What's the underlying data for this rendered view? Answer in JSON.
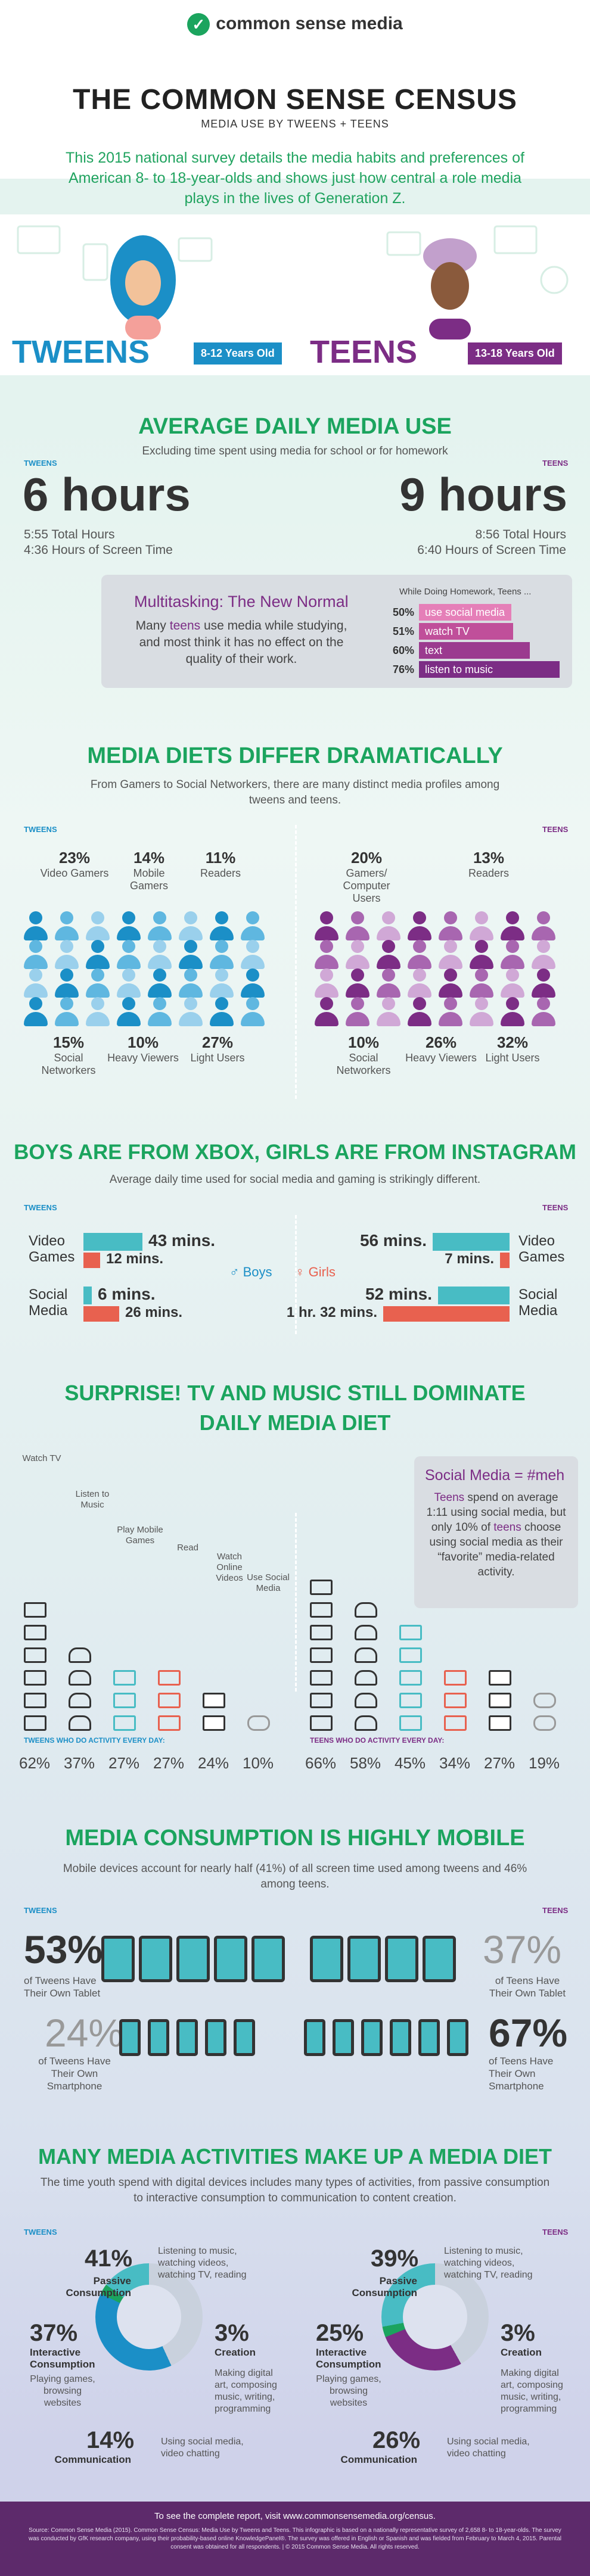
{
  "header": {
    "logo_text": "common sense media",
    "title": "THE COMMON SENSE CENSUS",
    "subtitle": "MEDIA USE BY TWEENS + TEENS",
    "intro": "This 2015 national survey details the media habits and preferences of American 8- to 18-year-olds and shows just how central a role media plays in the lives of Generation Z."
  },
  "hero": {
    "tweens_label": "TWEENS",
    "tweens_age": "8-12 Years Old",
    "teens_label": "TEENS",
    "teens_age": "13-18 Years Old"
  },
  "colors": {
    "green": "#1ba45e",
    "tweens_blue": "#1b8fc7",
    "teens_purple": "#7c2d85",
    "teal": "#48bcc4",
    "coral": "#e8614f",
    "pink": "#e57fb8"
  },
  "daily_use": {
    "title": "AVERAGE DAILY MEDIA USE",
    "subtitle": "Excluding time spent using media for school or for homework",
    "tweens_label": "TWEENS",
    "teens_label": "TEENS",
    "tweens_hours": "6 hours",
    "tweens_total": "5:55 Total Hours",
    "tweens_screen": "4:36 Hours of Screen Time",
    "teens_hours": "9 hours",
    "teens_total": "8:56 Total Hours",
    "teens_screen": "6:40 Hours of Screen Time"
  },
  "multitasking": {
    "title": "Multitasking: The New Normal",
    "text_before": "Many ",
    "text_highlight": "teens",
    "text_after": " use media while studying, and most think it has no effect on the quality of their work.",
    "header": "While Doing Homework, Teens ...",
    "rows": [
      {
        "pct": "50%",
        "label": "use social media",
        "value": 50,
        "color": "#e57fb8"
      },
      {
        "pct": "51%",
        "label": "watch TV",
        "value": 51,
        "color": "#c04f9a"
      },
      {
        "pct": "60%",
        "label": "text",
        "value": 60,
        "color": "#9b3a8f"
      },
      {
        "pct": "76%",
        "label": "listen to music",
        "value": 76,
        "color": "#7c2d85"
      }
    ]
  },
  "diets": {
    "title": "MEDIA DIETS DIFFER DRAMATICALLY",
    "subtitle": "From Gamers to Social Networkers, there are many distinct media profiles among tweens and teens.",
    "tweens_label": "TWEENS",
    "teens_label": "TEENS",
    "tweens_top": [
      {
        "pct": "23%",
        "desc": "Video Gamers"
      },
      {
        "pct": "14%",
        "desc": "Mobile Gamers"
      },
      {
        "pct": "11%",
        "desc": "Readers"
      }
    ],
    "tweens_bottom": [
      {
        "pct": "15%",
        "desc": "Social Networkers"
      },
      {
        "pct": "10%",
        "desc": "Heavy Viewers"
      },
      {
        "pct": "27%",
        "desc": "Light Users"
      }
    ],
    "teens_top": [
      {
        "pct": "20%",
        "desc": "Gamers/ Computer Users"
      },
      {
        "pct": "13%",
        "desc": "Readers"
      }
    ],
    "teens_bottom": [
      {
        "pct": "10%",
        "desc": "Social Networkers"
      },
      {
        "pct": "26%",
        "desc": "Heavy Viewers"
      },
      {
        "pct": "32%",
        "desc": "Light Users"
      }
    ]
  },
  "social_gaming": {
    "title": "BOYS ARE FROM XBOX, GIRLS ARE FROM INSTAGRAM",
    "subtitle": "Average daily time used for social media and gaming is strikingly different.",
    "tweens_label": "TWEENS",
    "teens_label": "TEENS",
    "boys_label": "Boys",
    "girls_label": "Girls",
    "video_games_label": "Video Games",
    "social_media_label": "Social Media",
    "tweens_video_boys": "43 mins.",
    "tweens_video_girls": "12 mins.",
    "tweens_social_boys": "6 mins.",
    "tweens_social_girls": "26 mins.",
    "teens_video_boys": "56 mins.",
    "teens_video_girls": "7 mins.",
    "teens_social_boys": "52 mins.",
    "teens_social_girls": "1 hr. 32 mins.",
    "minutes": {
      "tweens_video_boys": 43,
      "tweens_video_girls": 12,
      "tweens_social_boys": 6,
      "tweens_social_girls": 26,
      "teens_video_boys": 56,
      "teens_video_girls": 7,
      "teens_social_boys": 52,
      "teens_social_girls": 92
    }
  },
  "tv_music": {
    "title_line1": "SURPRISE! TV AND MUSIC STILL DOMINATE",
    "title_line2": "DAILY MEDIA DIET",
    "callout_title": "Social Media = #meh",
    "callout_teens": "Teens",
    "callout_text1": " spend on average 1:11 using social media, but only 10% of ",
    "callout_teens2": "teens",
    "callout_text2": " choose using social media as their “favorite” media-related activity.",
    "activities": [
      "Watch TV",
      "Listen to Music",
      "Play Mobile Games",
      "Read",
      "Watch Online Videos",
      "Use Social Media"
    ],
    "tweens_caption": "TWEENS WHO DO ACTIVITY EVERY DAY:",
    "teens_caption": "TEENS WHO DO ACTIVITY EVERY DAY:",
    "tweens_pcts": [
      "62%",
      "37%",
      "27%",
      "27%",
      "24%",
      "10%"
    ],
    "teens_pcts": [
      "66%",
      "58%",
      "45%",
      "34%",
      "27%",
      "19%"
    ],
    "tweens_values": [
      62,
      37,
      27,
      27,
      24,
      10
    ],
    "teens_values": [
      66,
      58,
      45,
      34,
      27,
      19
    ]
  },
  "mobile": {
    "title": "MEDIA CONSUMPTION IS HIGHLY MOBILE",
    "subtitle": "Mobile devices account for nearly half (41%) of all screen time used among tweens and 46% among teens.",
    "tweens_label": "TWEENS",
    "teens_label": "TEENS",
    "tweens_tablet_pct": "53%",
    "tweens_tablet_desc": "of Tweens Have Their Own Tablet",
    "tweens_phone_pct": "24%",
    "tweens_phone_desc": "of Tweens Have Their Own Smartphone",
    "teens_tablet_pct": "37%",
    "teens_tablet_desc": "of Teens Have Their Own Tablet",
    "teens_phone_pct": "67%",
    "teens_phone_desc": "of Teens Have Their Own Smartphone"
  },
  "activities": {
    "title": "MANY MEDIA ACTIVITIES MAKE UP A MEDIA DIET",
    "subtitle": "The time youth spend with digital devices includes many types of activities, from passive consumption to interactive consumption to communication to content creation.",
    "tweens_label": "TWEENS",
    "teens_label": "TEENS",
    "passive_name": "Passive Consumption",
    "passive_desc": "Listening to music, watching videos, watching TV, reading",
    "interactive_name": "Interactive Consumption",
    "interactive_desc": "Playing games, browsing websites",
    "creation_name": "Creation",
    "creation_desc": "Making digital art, composing music, writing, programming",
    "communication_name": "Communication",
    "communication_desc": "Using social media, video chatting",
    "tweens": {
      "passive": "41%",
      "interactive": "37%",
      "creation": "3%",
      "communication": "14%"
    },
    "teens": {
      "passive": "39%",
      "interactive": "25%",
      "creation": "3%",
      "communication": "26%"
    },
    "tweens_values": [
      41,
      37,
      3,
      14
    ],
    "teens_values": [
      39,
      25,
      3,
      26
    ]
  },
  "footer": {
    "line1": "To see the complete report, visit www.commonsensemedia.org/census.",
    "line2": "Source: Common Sense Media (2015). Common Sense Census: Media Use by Tweens and Teens. This infographic is based on a nationally representative survey of 2,658 8- to 18-year-olds. The survey was conducted by GfK research company, using their probability-based online KnowledgePanel®. The survey was offered in English or Spanish and was fielded from February to March 4, 2015. Parental consent was obtained for all respondents. | © 2015 Common Sense Media. All rights reserved."
  }
}
